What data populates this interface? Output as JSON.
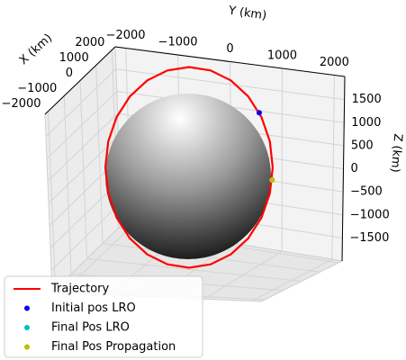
{
  "chart_data": {
    "type": "line3d",
    "x_label": "X (km)",
    "y_label": "Y (km)",
    "z_label": "Z (km)",
    "xlim": [
      -2200,
      2200
    ],
    "ylim": [
      -2200,
      2200
    ],
    "zlim": [
      -2000,
      2000
    ],
    "xticks": [
      {
        "value": -2000,
        "label": "−2000"
      },
      {
        "value": -1000,
        "label": "−1000"
      },
      0,
      1000,
      2000
    ],
    "yticks": [
      {
        "value": -2000,
        "label": "−2000"
      },
      {
        "value": -1000,
        "label": "−1000"
      },
      0,
      1000,
      2000
    ],
    "zticks": [
      {
        "value": -1500,
        "label": "−1500"
      },
      {
        "value": -1000,
        "label": "−1000"
      },
      {
        "value": -500,
        "label": "−500"
      },
      0,
      500,
      1000,
      1500
    ],
    "grid": true,
    "legend": "lower left",
    "series": [
      {
        "name": "Trajectory",
        "color": "#ff0000",
        "mode": "line",
        "x": [
          0,
          0,
          0,
          0,
          0,
          0,
          0,
          0,
          0,
          0,
          0,
          0,
          0,
          0,
          0,
          0,
          0,
          0,
          0,
          0,
          0,
          0,
          0,
          0,
          0
        ],
        "y": [
          1837,
          1774,
          1591,
          1299,
          919,
          475,
          0,
          -475,
          -919,
          -1299,
          -1591,
          -1774,
          -1837,
          -1774,
          -1591,
          -1299,
          -919,
          -475,
          0,
          475,
          919,
          1299,
          1591,
          1774,
          1837
        ],
        "z": [
          0,
          475,
          919,
          1299,
          1591,
          1774,
          1837,
          1774,
          1591,
          1299,
          919,
          475,
          0,
          -475,
          -919,
          -1299,
          -1591,
          -1774,
          -1837,
          -1774,
          -1591,
          -1299,
          -919,
          -475,
          0
        ]
      },
      {
        "name": "Initial pos LRO",
        "color": "#0000ff",
        "mode": "marker",
        "x": [
          0
        ],
        "y": [
          1541
        ],
        "z": [
          1000
        ]
      },
      {
        "name": "Final Pos LRO",
        "color": "#00bfbf",
        "mode": "marker",
        "x": [
          0
        ],
        "y": [
          1823
        ],
        "z": [
          -230
        ]
      },
      {
        "name": "Final Pos Propagation",
        "color": "#bfbf00",
        "mode": "marker",
        "x": [
          0
        ],
        "y": [
          1823
        ],
        "z": [
          -230
        ]
      }
    ]
  }
}
